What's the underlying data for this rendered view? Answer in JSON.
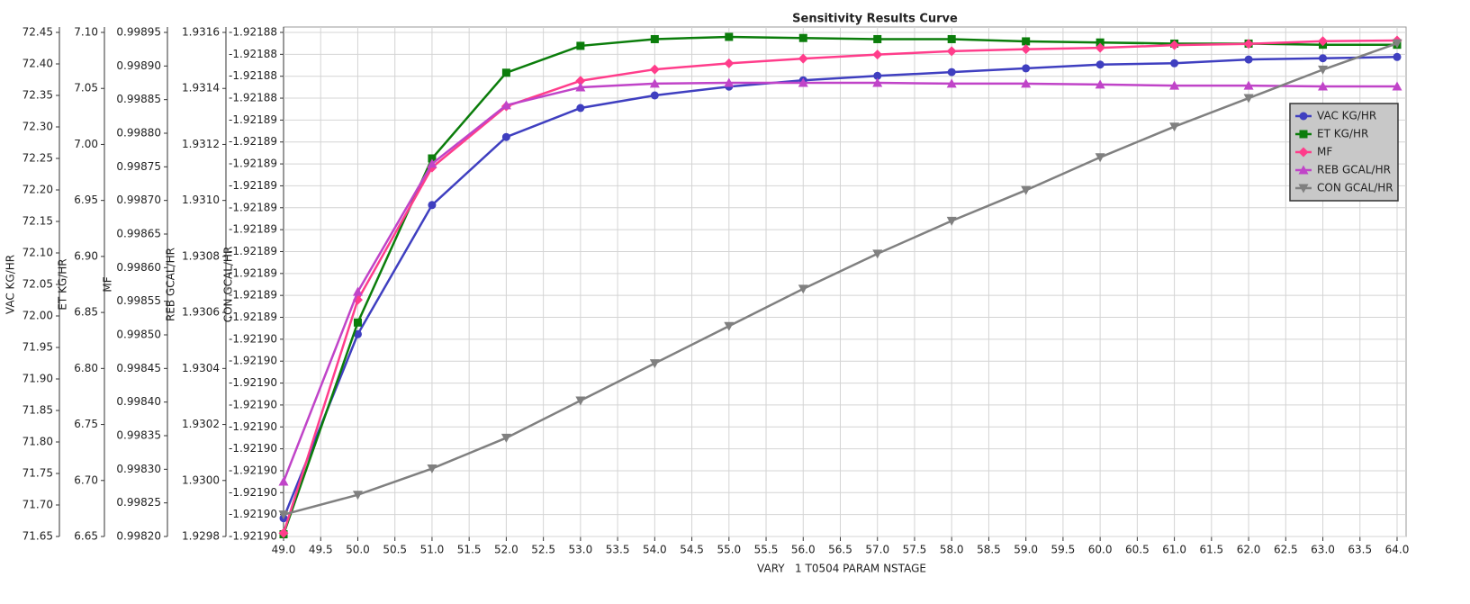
{
  "chart_data": {
    "type": "line",
    "title": "Sensitivity Results Curve",
    "x_label": "VARY   1 T0504 PARAM NSTAGE",
    "x": [
      49,
      50,
      51,
      52,
      53,
      54,
      55,
      56,
      57,
      58,
      59,
      60,
      61,
      62,
      63,
      64
    ],
    "xlim": [
      49,
      64
    ],
    "xticks": [
      {
        "value": 49,
        "label": "49.0"
      },
      {
        "value": 49.5,
        "label": "49.5"
      },
      {
        "value": 50,
        "label": "50.0"
      },
      {
        "value": 50.5,
        "label": "50.5"
      },
      {
        "value": 51,
        "label": "51.0"
      },
      {
        "value": 51.5,
        "label": "51.5"
      },
      {
        "value": 52,
        "label": "52.0"
      },
      {
        "value": 52.5,
        "label": "52.5"
      },
      {
        "value": 53,
        "label": "53.0"
      },
      {
        "value": 53.5,
        "label": "53.5"
      },
      {
        "value": 54,
        "label": "54.0"
      },
      {
        "value": 54.5,
        "label": "54.5"
      },
      {
        "value": 55,
        "label": "55.0"
      },
      {
        "value": 55.5,
        "label": "55.5"
      },
      {
        "value": 56,
        "label": "56.0"
      },
      {
        "value": 56.5,
        "label": "56.5"
      },
      {
        "value": 57,
        "label": "57.0"
      },
      {
        "value": 57.5,
        "label": "57.5"
      },
      {
        "value": 58,
        "label": "58.0"
      },
      {
        "value": 58.5,
        "label": "58.5"
      },
      {
        "value": 59,
        "label": "59.0"
      },
      {
        "value": 59.5,
        "label": "59.5"
      },
      {
        "value": 60,
        "label": "60.0"
      },
      {
        "value": 60.5,
        "label": "60.5"
      },
      {
        "value": 61,
        "label": "61.0"
      },
      {
        "value": 61.5,
        "label": "61.5"
      },
      {
        "value": 62,
        "label": "62.0"
      },
      {
        "value": 62.5,
        "label": "62.5"
      },
      {
        "value": 63,
        "label": "63.0"
      },
      {
        "value": 63.5,
        "label": "63.5"
      },
      {
        "value": 64,
        "label": "64.0"
      }
    ],
    "grid": true,
    "legend": "upper right",
    "yaxes": [
      {
        "label": "VAC KG/HR",
        "ylim": [
          71.65,
          72.45
        ],
        "yticks": [
          71.65,
          {
            "value": 71.7,
            "label": "71.70"
          },
          71.75,
          {
            "value": 71.8,
            "label": "71.80"
          },
          71.85,
          {
            "value": 71.9,
            "label": "71.90"
          },
          71.95,
          {
            "value": 72,
            "label": "72.00"
          },
          72.05,
          {
            "value": 72.1,
            "label": "72.10"
          },
          72.15,
          {
            "value": 72.2,
            "label": "72.20"
          },
          72.25,
          {
            "value": 72.3,
            "label": "72.30"
          },
          72.35,
          {
            "value": 72.4,
            "label": "72.40"
          },
          72.45
        ]
      },
      {
        "label": "ET KG/HR",
        "ylim": [
          6.65,
          7.1
        ],
        "yticks": [
          6.65,
          {
            "value": 6.7,
            "label": "6.70"
          },
          6.75,
          {
            "value": 6.8,
            "label": "6.80"
          },
          6.85,
          {
            "value": 6.9,
            "label": "6.90"
          },
          6.95,
          {
            "value": 7,
            "label": "7.00"
          },
          7.05,
          {
            "value": 7.1,
            "label": "7.10"
          }
        ]
      },
      {
        "label": "MF",
        "ylim": [
          0.9982,
          0.99895
        ],
        "yticks": [
          {
            "value": 0.9982,
            "label": "0.99820"
          },
          0.99825,
          {
            "value": 0.9983,
            "label": "0.99830"
          },
          0.99835,
          {
            "value": 0.9984,
            "label": "0.99840"
          },
          0.99845,
          {
            "value": 0.9985,
            "label": "0.99850"
          },
          0.99855,
          {
            "value": 0.9986,
            "label": "0.99860"
          },
          0.99865,
          {
            "value": 0.9987,
            "label": "0.99870"
          },
          0.99875,
          {
            "value": 0.9988,
            "label": "0.99880"
          },
          0.99885,
          {
            "value": 0.9989,
            "label": "0.99890"
          },
          0.99895
        ]
      },
      {
        "label": "REB GCAL/HR",
        "ylim": [
          1.9298,
          1.9316
        ],
        "yticks": [
          1.9298,
          {
            "value": 1.93,
            "label": "1.9300"
          },
          1.9302,
          1.9304,
          1.9306,
          1.9308,
          {
            "value": 1.931,
            "label": "1.9310"
          },
          1.9312,
          1.9314,
          1.9316
        ]
      },
      {
        "label": "CON GCAL/HR",
        "ylim": [
          -1.9219045,
          -1.9218815
        ],
        "grid": true,
        "yticks": [
          {
            "value": -1.9219045,
            "label": "-1.92190"
          },
          {
            "value": -1.9219035,
            "label": "-1.92190"
          },
          {
            "value": -1.9219025,
            "label": "-1.92190"
          },
          {
            "value": -1.9219015,
            "label": "-1.92190"
          },
          {
            "value": -1.9219005,
            "label": "-1.92190"
          },
          {
            "value": -1.9218995,
            "label": "-1.92190"
          },
          {
            "value": -1.9218985,
            "label": "-1.92190"
          },
          {
            "value": -1.9218975,
            "label": "-1.92190"
          },
          {
            "value": -1.9218965,
            "label": "-1.92190"
          },
          {
            "value": -1.9218955,
            "label": "-1.92190"
          },
          {
            "value": -1.9218945,
            "label": "-1.92189"
          },
          {
            "value": -1.9218935,
            "label": "-1.92189"
          },
          {
            "value": -1.9218925,
            "label": "-1.92189"
          },
          {
            "value": -1.9218915,
            "label": "-1.92189"
          },
          {
            "value": -1.9218905,
            "label": "-1.92189"
          },
          {
            "value": -1.9218895,
            "label": "-1.92189"
          },
          {
            "value": -1.9218885,
            "label": "-1.92189"
          },
          {
            "value": -1.9218875,
            "label": "-1.92189"
          },
          {
            "value": -1.9218865,
            "label": "-1.92189"
          },
          {
            "value": -1.9218855,
            "label": "-1.92189"
          },
          {
            "value": -1.9218845,
            "label": "-1.92188"
          },
          {
            "value": -1.9218835,
            "label": "-1.92188"
          },
          {
            "value": -1.9218825,
            "label": "-1.92188"
          },
          {
            "value": -1.9218815,
            "label": "-1.92188"
          }
        ]
      }
    ],
    "series": [
      {
        "name": "VAC KG/HR",
        "color": "#3f3fc0",
        "marker": "circle",
        "axis": 0,
        "values": [
          71.679,
          71.971,
          72.176,
          72.284,
          72.33,
          72.35,
          72.364,
          72.374,
          72.381,
          72.387,
          72.393,
          72.399,
          72.401,
          72.407,
          72.409,
          72.411
        ]
      },
      {
        "name": "ET KG/HR",
        "color": "#0b7d0b",
        "marker": "square",
        "axis": 1,
        "values": [
          6.652,
          6.841,
          6.9875,
          7.064,
          7.088,
          7.094,
          7.096,
          7.095,
          7.094,
          7.094,
          7.092,
          7.091,
          7.09,
          7.09,
          7.089,
          7.089
        ]
      },
      {
        "name": "MF",
        "color": "#ff3d8b",
        "marker": "diamond",
        "axis": 2,
        "values": [
          0.998205,
          0.998552,
          0.998749,
          0.99884,
          0.998878,
          0.998895,
          0.998904,
          0.998911,
          0.998917,
          0.998922,
          0.998925,
          0.998927,
          0.998931,
          0.998933,
          0.998937,
          0.998938
        ]
      },
      {
        "name": "REB GCAL/HR",
        "color": "#c044c8",
        "marker": "triangle",
        "axis": 3,
        "values": [
          1.929996,
          1.930674,
          1.931131,
          1.93134,
          1.931404,
          1.931417,
          1.93142,
          1.93142,
          1.93142,
          1.931417,
          1.931417,
          1.931414,
          1.93141,
          1.93141,
          1.931407,
          1.931407
        ]
      },
      {
        "name": "CON GCAL/HR",
        "color": "#808080",
        "marker": "triangle-down",
        "axis": 4,
        "values": [
          -1.9219035,
          -1.9219026,
          -1.9219014,
          -1.9219,
          -1.9218983,
          -1.9218966,
          -1.9218949,
          -1.9218932,
          -1.9218916,
          -1.9218901,
          -1.9218887,
          -1.9218872,
          -1.9218858,
          -1.9218845,
          -1.9218832,
          -1.921882
        ]
      }
    ]
  }
}
